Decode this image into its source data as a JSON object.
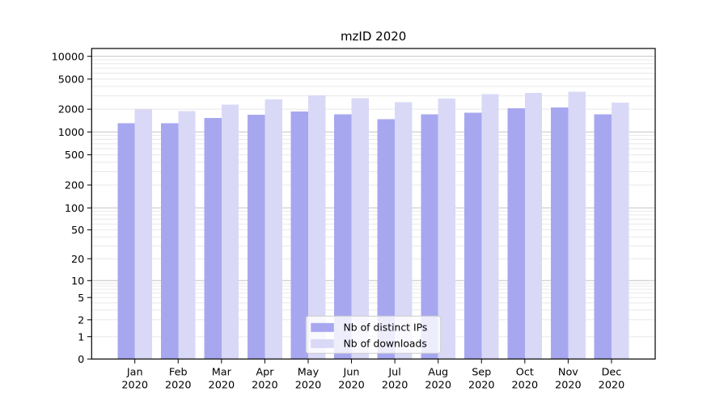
{
  "chart_data": {
    "type": "bar",
    "title": "mzID 2020",
    "categories": [
      "Jan 2020",
      "Feb 2020",
      "Mar 2020",
      "Apr 2020",
      "May 2020",
      "Jun 2020",
      "Jul 2020",
      "Aug 2020",
      "Sep 2020",
      "Oct 2020",
      "Nov 2020",
      "Dec 2020"
    ],
    "series": [
      {
        "name": "Nb of distinct IPs",
        "color": "#a7a7f0",
        "values": [
          1300,
          1300,
          1530,
          1680,
          1860,
          1700,
          1480,
          1720,
          1790,
          2050,
          2120,
          1720
        ]
      },
      {
        "name": "Nb of downloads",
        "color": "#d9d9f7",
        "values": [
          2000,
          1890,
          2300,
          2690,
          3050,
          2800,
          2480,
          2760,
          3170,
          3300,
          3390,
          2440
        ]
      }
    ],
    "y_scale": "symlog",
    "y_ticks": [
      0,
      1,
      2,
      5,
      10,
      20,
      50,
      100,
      200,
      500,
      1000,
      2000,
      5000,
      10000
    ],
    "ylim": [
      0,
      12000
    ],
    "xlabel": "",
    "ylabel": "",
    "grid": true,
    "legend_position": "lower center",
    "legend_labels": [
      "Nb of distinct IPs",
      "Nb of downloads"
    ],
    "colors": {
      "major_grid": "#c3c3c3",
      "minor_grid": "#e8e8e8",
      "axis_frame": "#000000",
      "legend_border": "#cccccc"
    }
  }
}
